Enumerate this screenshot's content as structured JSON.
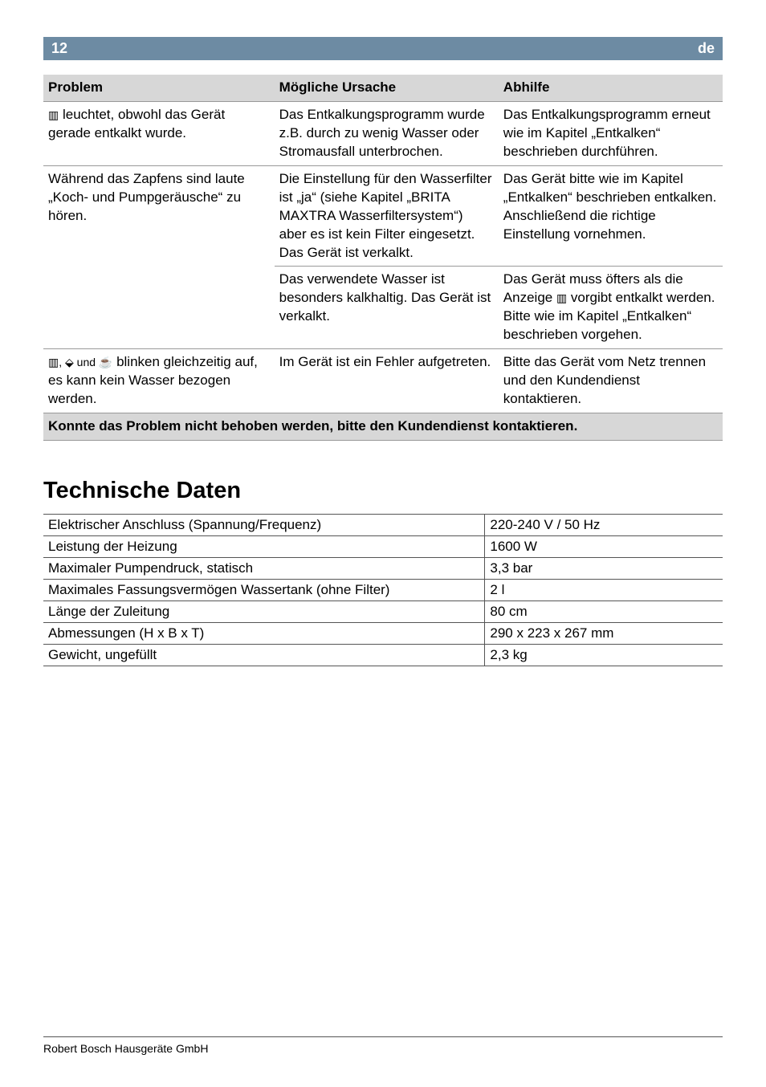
{
  "header": {
    "page_number": "12",
    "lang": "de"
  },
  "troubleshoot": {
    "columns": [
      "Problem",
      "Mögliche Ursache",
      "Abhilfe"
    ],
    "col_widths": [
      "34%",
      "33%",
      "33%"
    ],
    "header_bg": "#d7d7d7",
    "border_color": "#999999",
    "rows": [
      {
        "problem_pre_icon": "",
        "problem_icon": "▥",
        "problem": " leuchtet, obwohl das Gerät gerade entkalkt wurde.",
        "cause": "Das Entkalkungsprogramm wurde z.B. durch zu wenig Wasser oder Stromausfall unterbrochen.",
        "remedy": "Das Entkalkungsprogramm erneut wie im Kapitel „Entkalken“ beschrieben durchführen."
      },
      {
        "problem": "Während das Zapfens sind laute „Koch- und Pumpgeräusche“ zu hören.",
        "cause": "Die Einstellung für den Wasserfilter ist „ja“ (siehe Kapitel „BRITA MAXTRA Wasserfiltersystem“) aber es ist kein Filter eingesetzt. Das Gerät ist verkalkt.",
        "remedy": "Das Gerät bitte wie im Kapitel „Entkalken“ beschrieben entkalken. Anschließend die richtige Einstellung vornehmen.",
        "problem_rowspan": 2
      },
      {
        "cause": "Das verwendete Wasser ist besonders kalkhaltig. Das Gerät ist verkalkt.",
        "remedy_pre": "Das Gerät muss öfters als die Anzeige ",
        "remedy_icon": "▥",
        "remedy_post": " vorgibt entkalkt werden. Bitte wie im Kapitel „Entkalken“ beschrieben vorgehen."
      },
      {
        "problem_icons": "▥, ⬙ und ☕",
        "problem": " blinken gleichzeitig auf, es kann kein Wasser bezogen werden.",
        "cause": "Im Gerät ist ein Fehler aufgetreten.",
        "remedy": "Bitte das Gerät vom Netz trennen und den Kundendienst kontaktieren."
      }
    ],
    "footer_row": "Konnte das Problem nicht behoben werden, bitte den Kundendienst kontaktieren."
  },
  "tech_title": "Technische Daten",
  "specs": {
    "border_color": "#555555",
    "rows": [
      [
        "Elektrischer Anschluss (Spannung/Frequenz)",
        "220-240 V / 50 Hz"
      ],
      [
        "Leistung der Heizung",
        "1600 W"
      ],
      [
        "Maximaler Pumpendruck, statisch",
        "3,3 bar"
      ],
      [
        "Maximales Fassungsvermögen Wassertank (ohne Filter)",
        "2 l"
      ],
      [
        "Länge der Zuleitung",
        "80 cm"
      ],
      [
        "Abmessungen (H x B x T)",
        "290 x 223 x 267 mm"
      ],
      [
        "Gewicht, ungefüllt",
        "2,3 kg"
      ]
    ]
  },
  "footer_text": "Robert Bosch Hausgeräte GmbH"
}
